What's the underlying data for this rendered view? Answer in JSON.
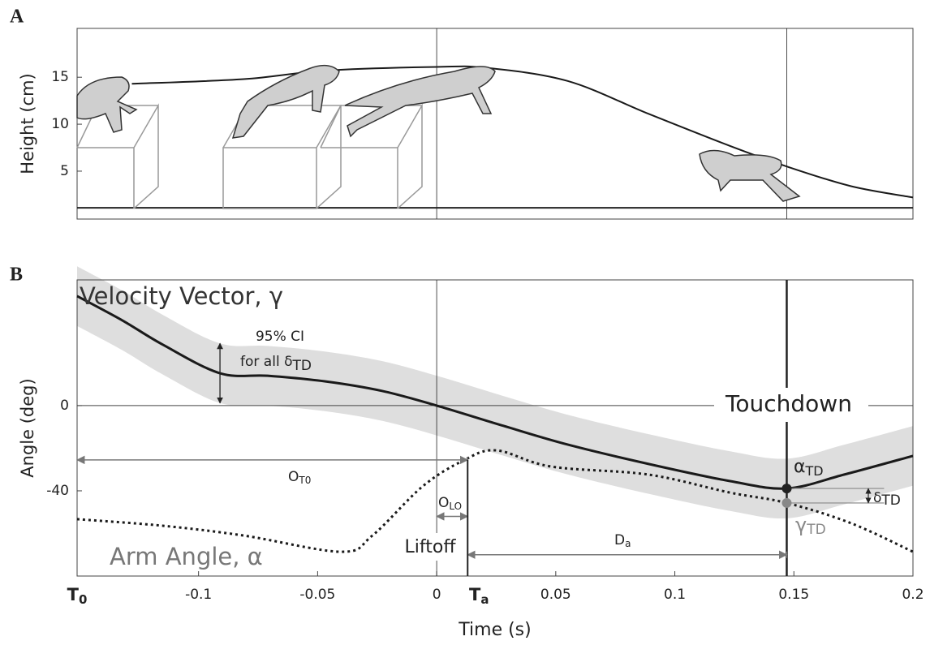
{
  "chart_data": [
    {
      "type": "line",
      "letter": "A",
      "ylabel": "Height (cm)",
      "xlim": [
        -0.151,
        0.2
      ],
      "ylim": [
        -0.1,
        20.2
      ],
      "yticks": [
        5,
        10,
        15
      ],
      "vlines": [
        0,
        0.147
      ],
      "baseline": 1.1,
      "series": [
        {
          "color": "#1a1a1a",
          "x": [
            -0.128,
            -0.081,
            -0.047,
            0,
            0.021,
            0.055,
            0.089,
            0.123,
            0.147,
            0.174,
            0.2
          ],
          "values": [
            14.3,
            14.8,
            15.7,
            16.1,
            16.0,
            14.6,
            11.1,
            7.7,
            5.5,
            3.4,
            2.2
          ]
        }
      ]
    },
    {
      "type": "line",
      "letter": "B",
      "ylabel": "Angle (deg)",
      "xlabel": "Time  (s)",
      "xlim": [
        -0.151,
        0.2
      ],
      "ylim": [
        -80,
        59
      ],
      "xticks": [
        -0.1,
        -0.05,
        0,
        0.05,
        0.1,
        0.15,
        0.2
      ],
      "yticks": [
        -40,
        0
      ],
      "vlines": [
        0,
        0.147
      ],
      "band_halfwidth": 14,
      "band_color": "#dedede",
      "series": [
        {
          "name": "Velocity Vector, γ",
          "color": "#1a1a1a",
          "dashed": false,
          "x": [
            -0.151,
            -0.132,
            -0.115,
            -0.091,
            -0.071,
            -0.047,
            -0.023,
            0,
            0.028,
            0.055,
            0.089,
            0.123,
            0.147,
            0.171,
            0.2
          ],
          "values": [
            51.4,
            40,
            28.6,
            15.2,
            14,
            11.4,
            6.9,
            0,
            -9.5,
            -18.3,
            -27.4,
            -35.4,
            -38.9,
            -32.4,
            -23.6
          ]
        },
        {
          "name": "Arm Angle, α",
          "color": "#1a1a1a",
          "dashed": true,
          "x": [
            -0.151,
            -0.115,
            -0.081,
            -0.04,
            -0.027,
            -0.006,
            0.011,
            0.025,
            0.048,
            0.089,
            0.123,
            0.147,
            0.174,
            0.2
          ],
          "values": [
            -53.3,
            -56.4,
            -61,
            -68.6,
            -61,
            -38,
            -25.9,
            -21,
            -28.6,
            -32.4,
            -40.8,
            -45.7,
            -55.2,
            -68.6
          ]
        }
      ],
      "markers": [
        {
          "text": "T",
          "sub": "0",
          "x": -0.151
        },
        {
          "text": "T",
          "sub": "a",
          "x": 0.013
        }
      ],
      "points": [
        {
          "x": 0.147,
          "y": -38.9,
          "color": "#222"
        },
        {
          "x": 0.147,
          "y": -45.7,
          "color": "#888"
        }
      ],
      "arrows": [
        {
          "x": [
            -0.151,
            0.013
          ],
          "y": -25.5
        },
        {
          "x": [
            0,
            0.013
          ],
          "y": -52
        },
        {
          "x": [
            0.013,
            0.147
          ],
          "y": -70
        }
      ],
      "annotations": {
        "ci": "95% CI",
        "ci2": {
          "text": "for all δ",
          "sub": "TD"
        },
        "touchdown": "Touchdown",
        "liftoff": "Liftoff",
        "ot0": {
          "text": "O",
          "sub": "T0"
        },
        "olo": {
          "text": "O",
          "sub": "LO"
        },
        "da": {
          "text": "D",
          "sub": "a"
        },
        "alpha_td": {
          "text": "α",
          "sub": "TD"
        },
        "gamma_td": {
          "text": "γ",
          "sub": "TD"
        },
        "delta_td": {
          "text": "δ",
          "sub": "TD"
        }
      }
    }
  ]
}
